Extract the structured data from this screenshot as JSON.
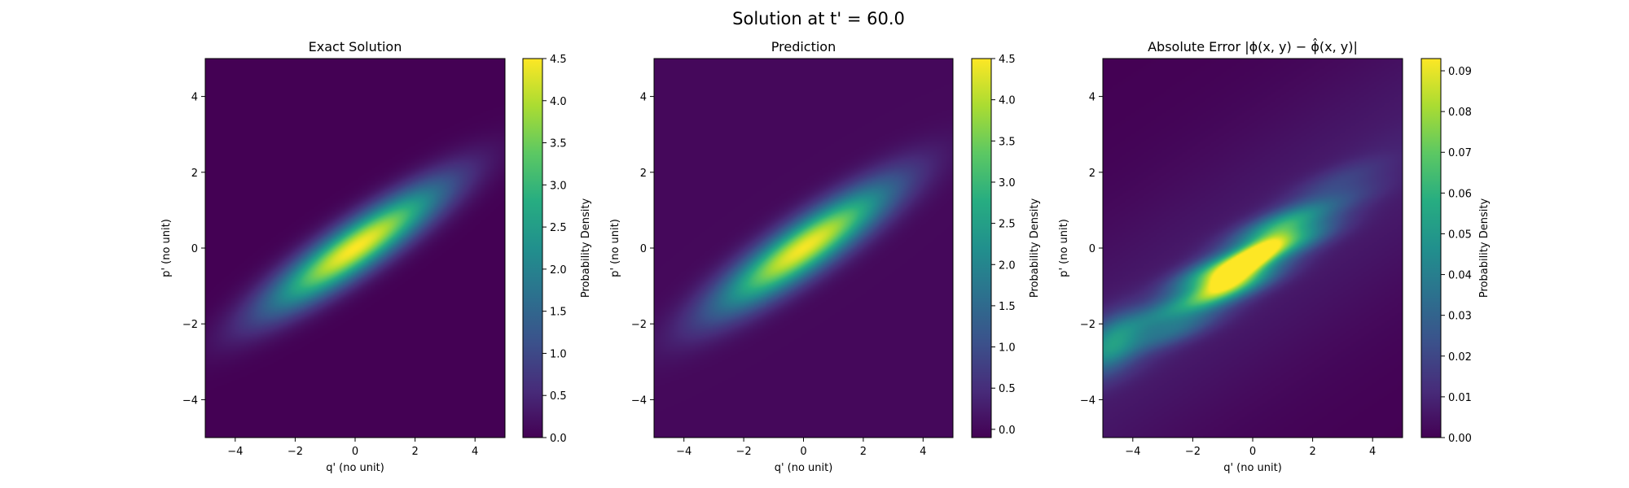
{
  "figure": {
    "suptitle": "Solution at t' = 60.0"
  },
  "colormap": {
    "name": "viridis",
    "stops": [
      "#440154",
      "#472c7a",
      "#3b518b",
      "#2c718e",
      "#21908d",
      "#27ad81",
      "#5cc863",
      "#aadc32",
      "#fde725"
    ]
  },
  "chart_data": [
    {
      "type": "heatmap",
      "title": "Exact Solution",
      "xlabel": "q' (no unit)",
      "ylabel": "p' (no unit)",
      "xlim": [
        -5,
        5
      ],
      "ylim": [
        -5,
        5
      ],
      "xticks": [
        -4,
        -2,
        0,
        2,
        4
      ],
      "yticks": [
        -4,
        -2,
        0,
        2,
        4
      ],
      "xtick_labels": [
        "−4",
        "−2",
        "0",
        "2",
        "4"
      ],
      "ytick_labels": [
        "−4",
        "−2",
        "0",
        "2",
        "4"
      ],
      "colorbar": {
        "label": "Probability Density",
        "range": [
          0,
          4.5
        ],
        "ticks": [
          0,
          0.5,
          1,
          1.5,
          2,
          2.5,
          3,
          3.5,
          4,
          4.5
        ],
        "tick_labels": [
          "0.0",
          "0.5",
          "1.0",
          "1.5",
          "2.0",
          "2.5",
          "3.0",
          "3.5",
          "4.0",
          "4.5"
        ]
      },
      "field": {
        "kind": "elongated-gaussian",
        "peak": 4.5,
        "center": [
          0,
          0
        ],
        "angle_deg": 28,
        "sigma_major": 2.2,
        "sigma_minor": 0.45
      }
    },
    {
      "type": "heatmap",
      "title": "Prediction",
      "xlabel": "q' (no unit)",
      "ylabel": "p' (no unit)",
      "xlim": [
        -5,
        5
      ],
      "ylim": [
        -5,
        5
      ],
      "xticks": [
        -4,
        -2,
        0,
        2,
        4
      ],
      "yticks": [
        -4,
        -2,
        0,
        2,
        4
      ],
      "xtick_labels": [
        "−4",
        "−2",
        "0",
        "2",
        "4"
      ],
      "ytick_labels": [
        "−4",
        "−2",
        "0",
        "2",
        "4"
      ],
      "colorbar": {
        "label": "Probability Density",
        "range": [
          -0.1,
          4.5
        ],
        "ticks": [
          0,
          0.5,
          1,
          1.5,
          2,
          2.5,
          3,
          3.5,
          4,
          4.5
        ],
        "tick_labels": [
          "0.0",
          "0.5",
          "1.0",
          "1.5",
          "2.0",
          "2.5",
          "3.0",
          "3.5",
          "4.0",
          "4.5"
        ]
      },
      "field": {
        "kind": "elongated-gaussian",
        "peak": 4.45,
        "center": [
          0,
          0
        ],
        "angle_deg": 28,
        "sigma_major": 2.2,
        "sigma_minor": 0.47
      }
    },
    {
      "type": "heatmap",
      "title": "Absolute Error |ϕ(x, y) − ϕ̂(x, y)|",
      "xlabel": "q' (no unit)",
      "ylabel": "p' (no unit)",
      "xlim": [
        -5,
        5
      ],
      "ylim": [
        -5,
        5
      ],
      "xticks": [
        -4,
        -2,
        0,
        2,
        4
      ],
      "yticks": [
        -4,
        -2,
        0,
        2,
        4
      ],
      "xtick_labels": [
        "−4",
        "−2",
        "0",
        "2",
        "4"
      ],
      "ytick_labels": [
        "−4",
        "−2",
        "0",
        "2",
        "4"
      ],
      "colorbar": {
        "label": "Probability Density",
        "range": [
          0,
          0.093
        ],
        "ticks": [
          0,
          0.01,
          0.02,
          0.03,
          0.04,
          0.05,
          0.06,
          0.07,
          0.08,
          0.09
        ],
        "tick_labels": [
          "0.00",
          "0.01",
          "0.02",
          "0.03",
          "0.04",
          "0.05",
          "0.06",
          "0.07",
          "0.08",
          "0.09"
        ]
      },
      "field": {
        "kind": "banded-error",
        "peak": 0.093,
        "center": [
          -0.4,
          -0.5
        ],
        "angle_deg": 28
      }
    }
  ]
}
